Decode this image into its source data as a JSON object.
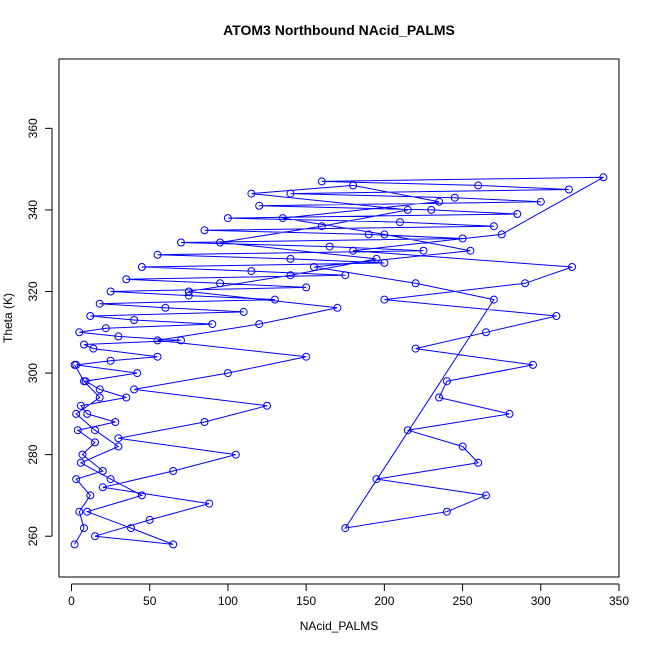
{
  "chart_data": {
    "type": "scatter",
    "title": "ATOM3 Northbound NAcid_PALMS",
    "xlabel": "NAcid_PALMS",
    "ylabel": "Theta (K)",
    "xlim": [
      -8,
      350
    ],
    "ylim": [
      250,
      377
    ],
    "x_ticks": [
      0,
      50,
      100,
      150,
      200,
      250,
      300,
      350
    ],
    "y_ticks": [
      260,
      280,
      300,
      320,
      340,
      360
    ],
    "series_color": "#0000ff",
    "marker": "open-circle",
    "connected_by_lines": true,
    "legend": "none",
    "grid": false,
    "series": [
      {
        "x": [
          2,
          8,
          5,
          12,
          3,
          20,
          7,
          15,
          4,
          28,
          10,
          6,
          35,
          18,
          9,
          42,
          3,
          25,
          55,
          14,
          8,
          70,
          30,
          5,
          22,
          90,
          40,
          12,
          110,
          60,
          18,
          130,
          75,
          25,
          150,
          95,
          35,
          175,
          115,
          45,
          200,
          140,
          55,
          225,
          165,
          70,
          250,
          190,
          85,
          270,
          210,
          100,
          285,
          230,
          120,
          300,
          245,
          140,
          318,
          260,
          160,
          340,
          275,
          180,
          320,
          290,
          200,
          310,
          265,
          220,
          295,
          240,
          235,
          280,
          215,
          250,
          260,
          195,
          265,
          240,
          175,
          270,
          220,
          155,
          255,
          200,
          135,
          235,
          180,
          115,
          215,
          160,
          95,
          195,
          140,
          75,
          170,
          120,
          55,
          150,
          100,
          40,
          125,
          85,
          30,
          105,
          65,
          20,
          88,
          50,
          15,
          65,
          38,
          10,
          45,
          25,
          6,
          30,
          15,
          3,
          18,
          8,
          2
        ],
        "y": [
          258,
          262,
          266,
          270,
          274,
          276,
          280,
          283,
          286,
          288,
          290,
          292,
          294,
          296,
          298,
          300,
          302,
          303,
          304,
          306,
          307,
          308,
          309,
          310,
          311,
          312,
          313,
          314,
          315,
          316,
          317,
          318,
          319,
          320,
          321,
          322,
          323,
          324,
          325,
          326,
          327,
          328,
          329,
          330,
          331,
          332,
          333,
          334,
          335,
          336,
          337,
          338,
          339,
          340,
          341,
          342,
          343,
          344,
          345,
          346,
          347,
          348,
          334,
          330,
          326,
          322,
          318,
          314,
          310,
          306,
          302,
          298,
          294,
          290,
          286,
          282,
          278,
          274,
          270,
          266,
          262,
          318,
          322,
          326,
          330,
          334,
          338,
          342,
          346,
          344,
          340,
          336,
          332,
          328,
          324,
          320,
          316,
          312,
          308,
          304,
          300,
          296,
          292,
          288,
          284,
          280,
          276,
          272,
          268,
          264,
          260,
          258,
          262,
          266,
          270,
          274,
          278,
          282,
          286,
          290,
          294,
          298,
          302
        ]
      }
    ]
  }
}
